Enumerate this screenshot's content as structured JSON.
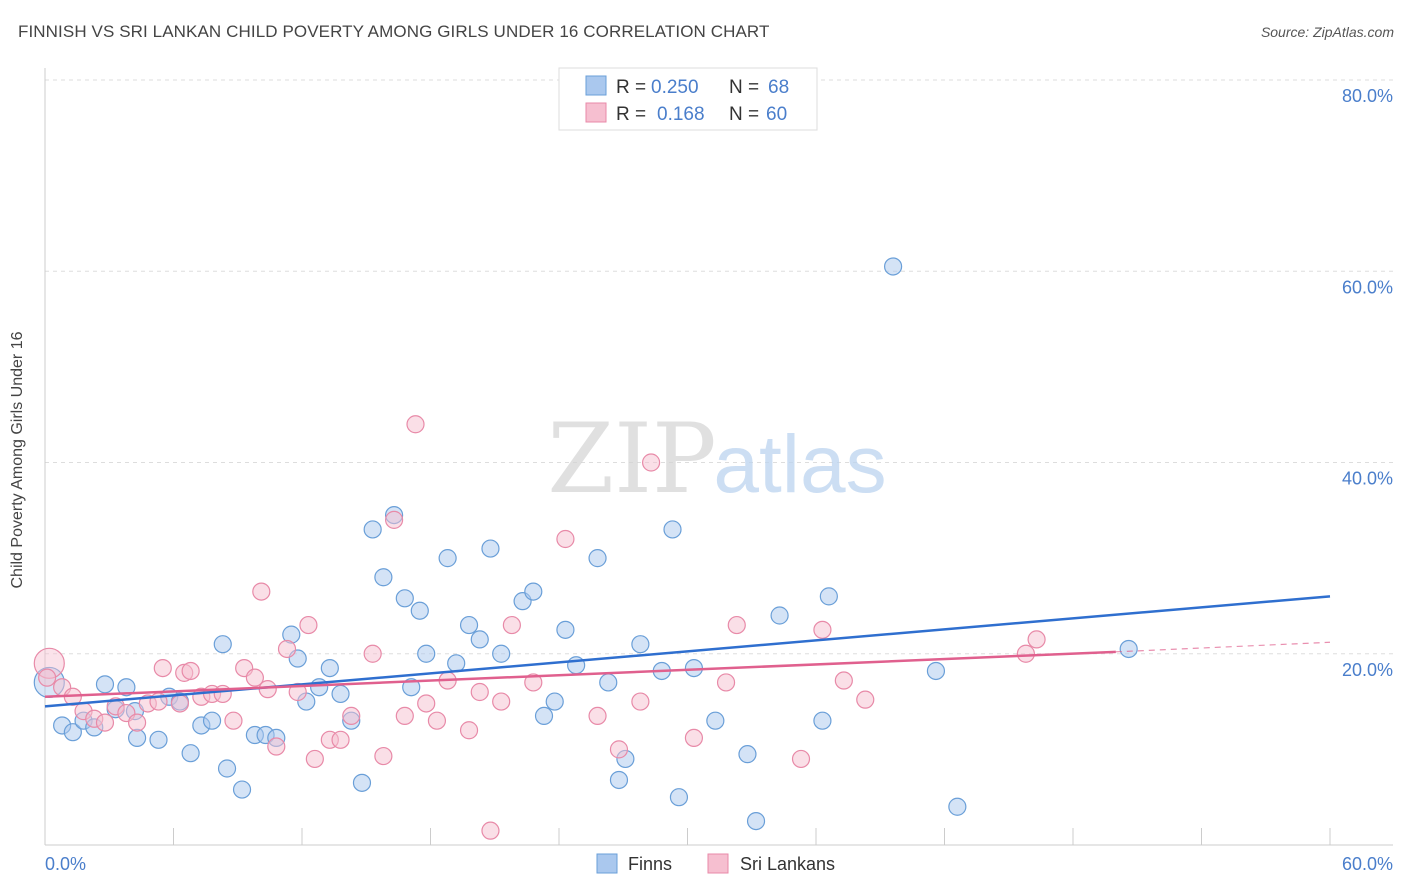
{
  "header": {
    "title": "FINNISH VS SRI LANKAN CHILD POVERTY AMONG GIRLS UNDER 16 CORRELATION CHART",
    "source": "Source: ZipAtlas.com"
  },
  "watermark": {
    "zip": "ZIP",
    "atlas": "atlas"
  },
  "legend_top": {
    "rows": [
      {
        "r_label": "R =",
        "r_value": "0.250",
        "n_label": "N =",
        "n_value": "68"
      },
      {
        "r_label": "R =",
        "r_value": "0.168",
        "n_label": "N =",
        "n_value": "60"
      }
    ]
  },
  "colors": {
    "finns_fill": "#aac8ee",
    "finns_stroke": "#6a9fd8",
    "finns_line": "#2f6fcf",
    "sri_fill": "#f6bfd0",
    "sri_stroke": "#e88aa8",
    "sri_line": "#e0608e",
    "axis_text": "#4a7ecb",
    "grid": "#dddddd"
  },
  "chart_data": {
    "type": "scatter",
    "title": "FINNISH VS SRI LANKAN CHILD POVERTY AMONG GIRLS UNDER 16 CORRELATION CHART",
    "xlabel": "",
    "ylabel": "Child Poverty Among Girls Under 16",
    "xlim": [
      0,
      60
    ],
    "ylim": [
      0,
      80
    ],
    "x_tick_labels": [
      "0.0%",
      "60.0%"
    ],
    "y_tick_labels": [
      "80.0%",
      "60.0%",
      "40.0%",
      "20.0%"
    ],
    "y_ticks": [
      80,
      60,
      40,
      20
    ],
    "grid": true,
    "legend_position": "bottom-center",
    "series": [
      {
        "name": "Finns",
        "r": 0.25,
        "n": 68,
        "trend": {
          "x": [
            0,
            60
          ],
          "y": [
            14.5,
            26.0
          ]
        },
        "points": [
          [
            0.2,
            17.0
          ],
          [
            0.8,
            12.5
          ],
          [
            1.3,
            11.8
          ],
          [
            1.8,
            13.0
          ],
          [
            2.3,
            12.3
          ],
          [
            2.8,
            16.8
          ],
          [
            3.3,
            14.2
          ],
          [
            3.8,
            16.5
          ],
          [
            4.2,
            14.0
          ],
          [
            4.3,
            11.2
          ],
          [
            5.3,
            11.0
          ],
          [
            5.8,
            15.5
          ],
          [
            6.3,
            15.0
          ],
          [
            6.8,
            9.6
          ],
          [
            7.3,
            12.5
          ],
          [
            7.8,
            13.0
          ],
          [
            8.3,
            21.0
          ],
          [
            8.5,
            8.0
          ],
          [
            9.2,
            5.8
          ],
          [
            9.8,
            11.5
          ],
          [
            10.3,
            11.5
          ],
          [
            10.8,
            11.2
          ],
          [
            11.5,
            22.0
          ],
          [
            11.8,
            19.5
          ],
          [
            12.2,
            15.0
          ],
          [
            12.8,
            16.5
          ],
          [
            13.3,
            18.5
          ],
          [
            13.8,
            15.8
          ],
          [
            14.3,
            13.0
          ],
          [
            14.8,
            6.5
          ],
          [
            15.3,
            33.0
          ],
          [
            15.8,
            28.0
          ],
          [
            16.3,
            34.5
          ],
          [
            16.8,
            25.8
          ],
          [
            17.1,
            16.5
          ],
          [
            17.5,
            24.5
          ],
          [
            17.8,
            20.0
          ],
          [
            18.8,
            30.0
          ],
          [
            19.2,
            19.0
          ],
          [
            19.8,
            23.0
          ],
          [
            20.3,
            21.5
          ],
          [
            20.8,
            31.0
          ],
          [
            21.3,
            20.0
          ],
          [
            22.3,
            25.5
          ],
          [
            22.8,
            26.5
          ],
          [
            23.3,
            13.5
          ],
          [
            23.8,
            15.0
          ],
          [
            24.3,
            22.5
          ],
          [
            24.8,
            18.8
          ],
          [
            25.8,
            30.0
          ],
          [
            26.3,
            17.0
          ],
          [
            26.8,
            6.8
          ],
          [
            27.1,
            9.0
          ],
          [
            27.8,
            21.0
          ],
          [
            28.8,
            18.2
          ],
          [
            29.3,
            33.0
          ],
          [
            29.6,
            5.0
          ],
          [
            30.3,
            18.5
          ],
          [
            31.3,
            13.0
          ],
          [
            32.8,
            9.5
          ],
          [
            33.2,
            2.5
          ],
          [
            34.3,
            24.0
          ],
          [
            36.3,
            13.0
          ],
          [
            36.6,
            26.0
          ],
          [
            39.6,
            60.5
          ],
          [
            41.6,
            18.2
          ],
          [
            42.6,
            4.0
          ],
          [
            50.6,
            20.5
          ]
        ]
      },
      {
        "name": "Sri Lankans",
        "r": 0.168,
        "n": 60,
        "trend": {
          "x": [
            0,
            50
          ],
          "y": [
            15.5,
            20.2
          ],
          "dashed_to": {
            "x": 60,
            "y": 21.2
          }
        },
        "points": [
          [
            0.2,
            19.0
          ],
          [
            0.8,
            16.5
          ],
          [
            1.3,
            15.5
          ],
          [
            1.8,
            14.0
          ],
          [
            2.3,
            13.2
          ],
          [
            2.8,
            12.8
          ],
          [
            3.3,
            14.5
          ],
          [
            3.8,
            13.8
          ],
          [
            4.3,
            12.8
          ],
          [
            4.8,
            14.8
          ],
          [
            5.3,
            15.0
          ],
          [
            5.5,
            18.5
          ],
          [
            6.3,
            14.8
          ],
          [
            6.5,
            18.0
          ],
          [
            6.8,
            18.2
          ],
          [
            7.3,
            15.5
          ],
          [
            7.8,
            15.8
          ],
          [
            8.3,
            15.8
          ],
          [
            8.8,
            13.0
          ],
          [
            9.3,
            18.5
          ],
          [
            9.8,
            17.5
          ],
          [
            10.1,
            26.5
          ],
          [
            10.4,
            16.3
          ],
          [
            10.8,
            10.3
          ],
          [
            11.3,
            20.5
          ],
          [
            11.8,
            16.0
          ],
          [
            12.3,
            23.0
          ],
          [
            12.6,
            9.0
          ],
          [
            13.3,
            11.0
          ],
          [
            13.8,
            11.0
          ],
          [
            14.3,
            13.5
          ],
          [
            15.3,
            20.0
          ],
          [
            15.8,
            9.3
          ],
          [
            16.3,
            34.0
          ],
          [
            16.8,
            13.5
          ],
          [
            17.3,
            44.0
          ],
          [
            17.8,
            14.8
          ],
          [
            18.3,
            13.0
          ],
          [
            18.8,
            17.2
          ],
          [
            19.8,
            12.0
          ],
          [
            20.3,
            16.0
          ],
          [
            20.8,
            1.5
          ],
          [
            21.3,
            15.0
          ],
          [
            21.8,
            23.0
          ],
          [
            22.8,
            17.0
          ],
          [
            24.3,
            32.0
          ],
          [
            25.8,
            13.5
          ],
          [
            26.8,
            10.0
          ],
          [
            27.8,
            15.0
          ],
          [
            28.3,
            40.0
          ],
          [
            30.3,
            11.2
          ],
          [
            31.8,
            17.0
          ],
          [
            32.3,
            23.0
          ],
          [
            35.3,
            9.0
          ],
          [
            36.3,
            22.5
          ],
          [
            37.3,
            17.2
          ],
          [
            38.3,
            15.2
          ],
          [
            45.8,
            20.0
          ],
          [
            46.3,
            21.5
          ],
          [
            0.1,
            17.5
          ]
        ]
      }
    ]
  },
  "legend_bottom": {
    "items": [
      "Finns",
      "Sri Lankans"
    ]
  }
}
